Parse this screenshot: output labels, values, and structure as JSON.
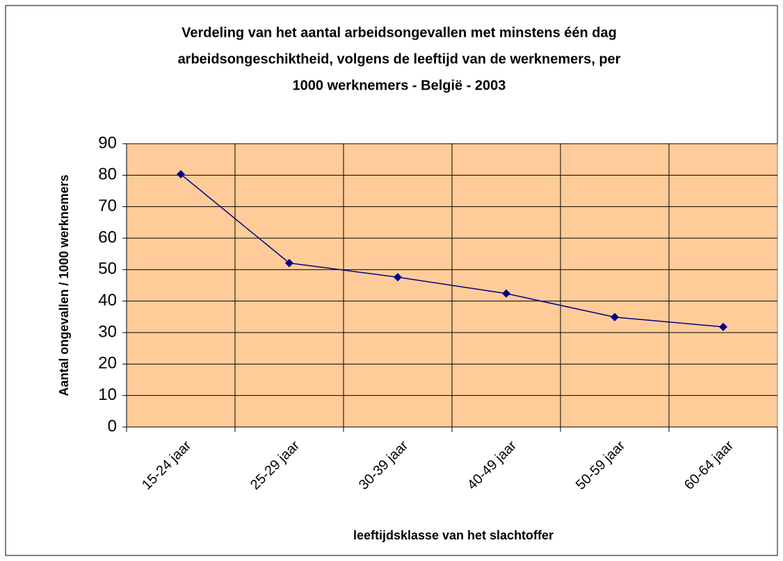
{
  "chart_data": {
    "type": "line",
    "title": [
      "Verdeling van het aantal arbeidsongevallen met minstens één dag",
      "arbeidsongeschiktheid, volgens de leeftijd van de werknemers, per",
      "1000 werknemers - België - 2003"
    ],
    "x_label": "leeftijdsklasse van het slachtoffer",
    "y_label": "Aantal ongevallen / 1000 werknemers",
    "categories": [
      "15-24 jaar",
      "25-29 jaar",
      "30-39 jaar",
      "40-49 jaar",
      "50-59 jaar",
      "60-64 jaar"
    ],
    "values": [
      80.3,
      52.1,
      47.6,
      42.4,
      34.9,
      31.8
    ],
    "color": "#000080",
    "plot_background": "#ffcc99",
    "ylim": [
      0,
      90
    ],
    "yticks": [
      0,
      10,
      20,
      30,
      40,
      50,
      60,
      70,
      80,
      90
    ],
    "grid": true
  }
}
